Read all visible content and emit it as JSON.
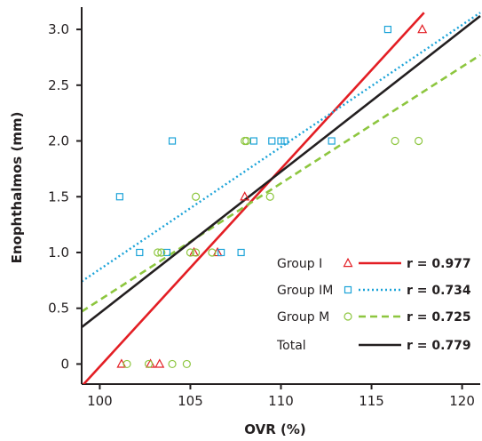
{
  "chart_data": {
    "type": "scatter",
    "xlabel": "OVR (%)",
    "ylabel": "Enophthalmos (mm)",
    "xlim": [
      99,
      121
    ],
    "ylim": [
      -0.18,
      3.2
    ],
    "xticks": [
      100,
      105,
      110,
      115,
      120
    ],
    "yticks": [
      0,
      0.5,
      1.0,
      1.5,
      2.0,
      2.5,
      3.0
    ],
    "ytick_labels": [
      "0",
      "0.5",
      "1.0",
      "1.5",
      "2.0",
      "2.5",
      "3.0"
    ],
    "grid": false,
    "legend_position": "bottom-right",
    "series": [
      {
        "name": "Group I",
        "marker": "triangle",
        "color": "#e31e24",
        "line_style": "solid",
        "r_label": "r = 0.977",
        "points": [
          [
            101.2,
            0
          ],
          [
            102.8,
            0
          ],
          [
            103.3,
            0
          ],
          [
            105.2,
            1.0
          ],
          [
            106.5,
            1.0
          ],
          [
            108.0,
            1.5
          ],
          [
            117.8,
            3.0
          ]
        ],
        "fit_line": [
          [
            99,
            -0.2
          ],
          [
            117.9,
            3.15
          ]
        ]
      },
      {
        "name": "Group IM",
        "marker": "square",
        "color": "#1ba3d8",
        "line_style": "dotted",
        "r_label": "r = 0.734",
        "points": [
          [
            101.1,
            1.5
          ],
          [
            102.2,
            1.0
          ],
          [
            103.7,
            1.0
          ],
          [
            104.0,
            2.0
          ],
          [
            106.7,
            1.0
          ],
          [
            107.8,
            1.0
          ],
          [
            108.5,
            2.0
          ],
          [
            109.5,
            2.0
          ],
          [
            110.0,
            2.0
          ],
          [
            110.2,
            2.0
          ],
          [
            112.8,
            2.0
          ],
          [
            115.9,
            3.0
          ]
        ],
        "fit_line": [
          [
            99,
            0.74
          ],
          [
            121,
            3.15
          ]
        ]
      },
      {
        "name": "Group M",
        "marker": "circle",
        "color": "#8dc63f",
        "line_style": "dashed",
        "r_label": "r = 0.725",
        "points": [
          [
            101.5,
            0
          ],
          [
            102.7,
            0
          ],
          [
            104.0,
            0
          ],
          [
            104.8,
            0
          ],
          [
            103.2,
            1.0
          ],
          [
            103.4,
            1.0
          ],
          [
            105.0,
            1.0
          ],
          [
            105.3,
            1.0
          ],
          [
            106.2,
            1.0
          ],
          [
            105.3,
            1.5
          ],
          [
            109.4,
            1.5
          ],
          [
            108.0,
            2.0
          ],
          [
            108.1,
            2.0
          ],
          [
            116.3,
            2.0
          ],
          [
            117.6,
            2.0
          ]
        ],
        "fit_line": [
          [
            99,
            0.47
          ],
          [
            121,
            2.77
          ]
        ]
      },
      {
        "name": "Total",
        "marker": "none",
        "color": "#231f20",
        "line_style": "solid",
        "r_label": "r = 0.779",
        "points": [],
        "fit_line": [
          [
            99,
            0.33
          ],
          [
            121,
            3.12
          ]
        ]
      }
    ]
  }
}
